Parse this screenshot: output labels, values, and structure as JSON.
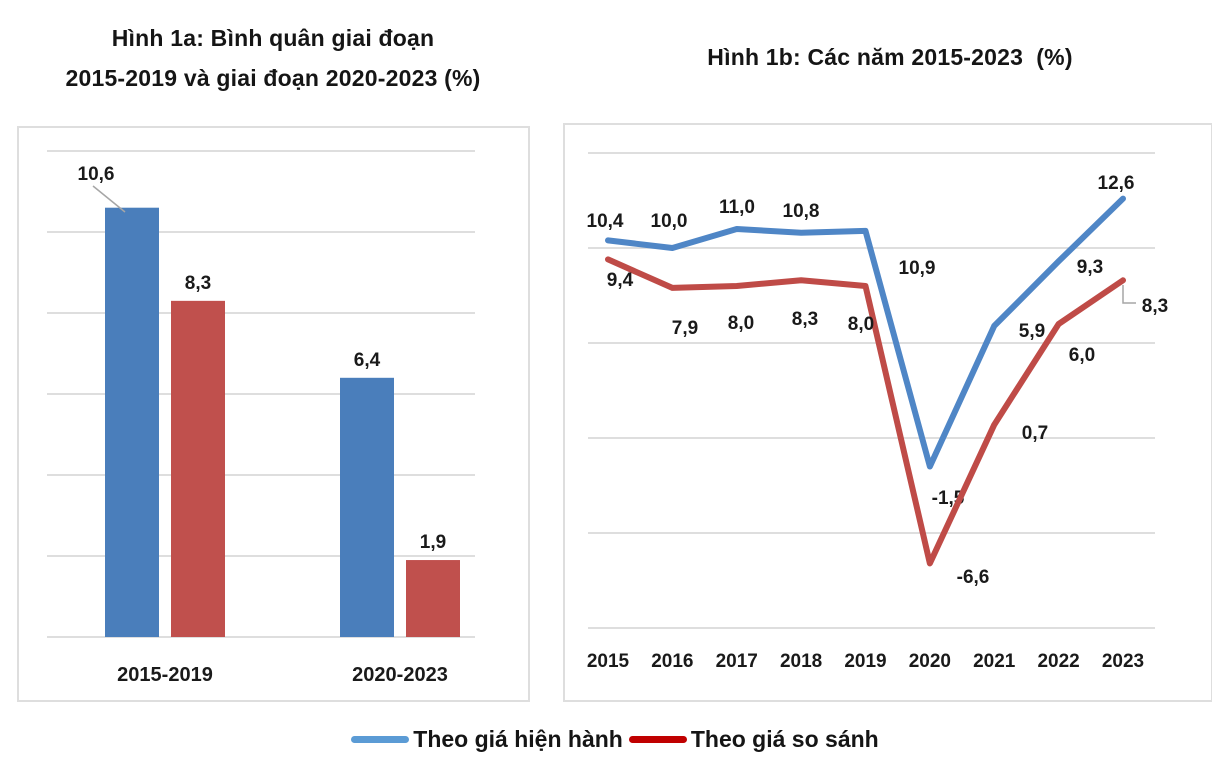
{
  "figure": {
    "left_title_line1": "Hình 1a: Bình quân giai đoạn",
    "left_title_line2": "2015-2019 và giai đoạn 2020-2023 (%)",
    "right_title": "Hình 1b: Các năm 2015-2023  (%)"
  },
  "legend": [
    {
      "label": "Theo giá hiện hành",
      "color": "#5B9BD5"
    },
    {
      "label": "Theo giá so sánh",
      "color": "#C00000"
    }
  ],
  "colors": {
    "bar_blue": "#4A7EBB",
    "bar_red": "#C0504D",
    "line_blue": "#4F86C6",
    "line_red": "#BF4B47",
    "gridline": "#d4d4d4",
    "leader_line": "#a6a6a6",
    "label_text": "#1a1a1a"
  },
  "chart_data": [
    {
      "id": "bar-averages",
      "type": "bar",
      "title": "Hình 1a: Bình quân giai đoạn 2015-2019 và giai đoạn 2020-2023 (%)",
      "categories": [
        "2015-2019",
        "2020-2023"
      ],
      "series": [
        {
          "name": "Theo giá hiện hành",
          "color": "#4A7EBB",
          "values": [
            10.6,
            6.4
          ],
          "labels": [
            "10,6",
            "6,4"
          ]
        },
        {
          "name": "Theo giá so sánh",
          "color": "#C0504D",
          "values": [
            8.3,
            1.9
          ],
          "labels": [
            "8,3",
            "1,9"
          ]
        }
      ],
      "ylim": [
        0,
        12
      ],
      "grid_step": 2,
      "grid": true,
      "y_axis_labels_visible": false,
      "legend_position": "bottom-shared"
    },
    {
      "id": "line-years",
      "type": "line",
      "title": "Hình 1b: Các năm 2015-2023  (%)",
      "categories": [
        "2015",
        "2016",
        "2017",
        "2018",
        "2019",
        "2020",
        "2021",
        "2022",
        "2023"
      ],
      "series": [
        {
          "name": "Theo giá hiện hành",
          "color": "#4F86C6",
          "values": [
            10.4,
            10.0,
            11.0,
            10.8,
            10.9,
            -1.5,
            5.9,
            9.3,
            12.6
          ],
          "labels": [
            "10,4",
            "10,0",
            "11,0",
            "10,8",
            "10,9",
            "-1,5",
            "5,9",
            "9,3",
            "12,6"
          ]
        },
        {
          "name": "Theo giá so sánh",
          "color": "#BF4B47",
          "values": [
            9.4,
            7.9,
            8.0,
            8.3,
            8.0,
            -6.6,
            0.7,
            6.0,
            8.3
          ],
          "labels": [
            "9,4",
            "7,9",
            "8,0",
            "8,3",
            "8,0",
            "-6,6",
            "0,7",
            "6,0",
            "8,3"
          ]
        }
      ],
      "ylim": [
        -10,
        15
      ],
      "grid_step": 5,
      "grid": true,
      "y_axis_labels_visible": false,
      "legend_position": "bottom-shared"
    }
  ]
}
